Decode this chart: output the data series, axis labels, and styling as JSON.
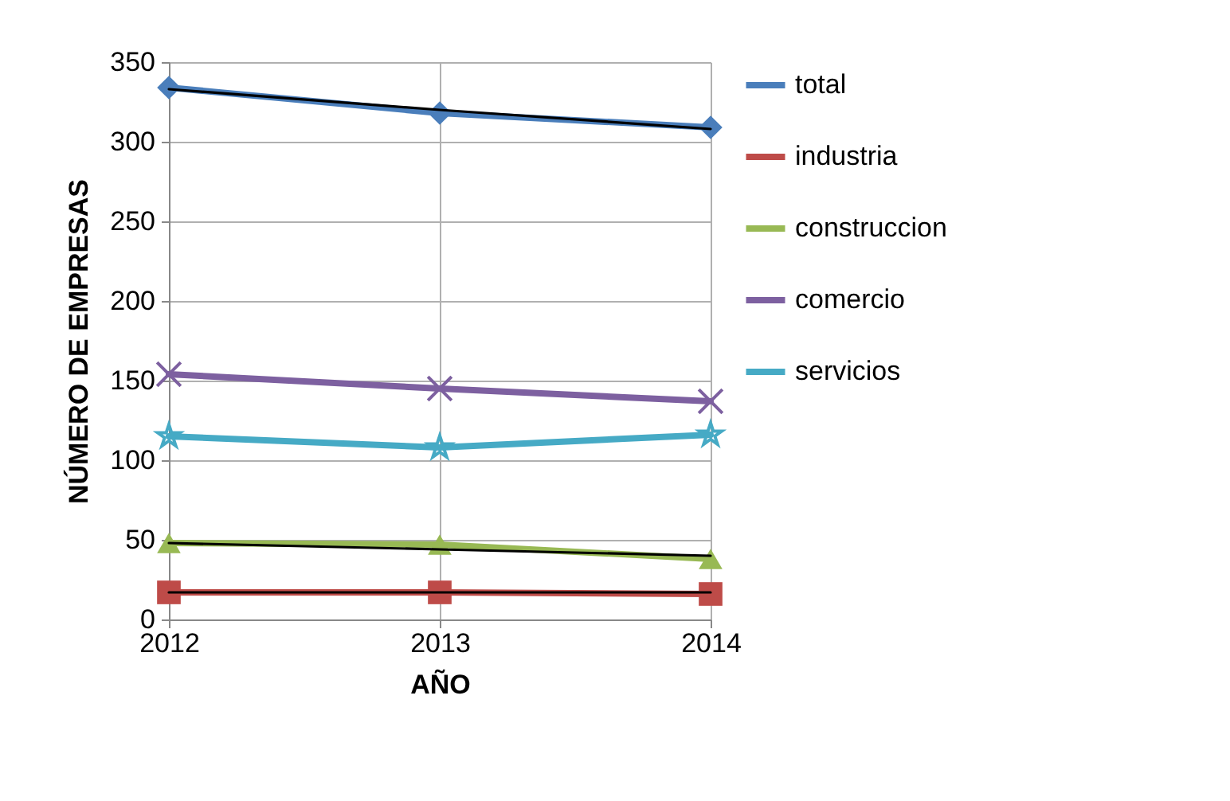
{
  "chart_data": {
    "type": "line",
    "xlabel": "AÑO",
    "ylabel": "NÚMERO DE EMPRESAS",
    "categories": [
      "2012",
      "2013",
      "2014"
    ],
    "ylim": [
      0,
      350
    ],
    "yticks": [
      0,
      50,
      100,
      150,
      200,
      250,
      300,
      350
    ],
    "grid": true,
    "legend": "right",
    "series": [
      {
        "name": "total",
        "color": "#4a7ebb",
        "marker": "diamond",
        "values": [
          334,
          318,
          309
        ]
      },
      {
        "name": "industria",
        "color": "#be4b48",
        "marker": "square",
        "values": [
          17,
          17,
          16
        ]
      },
      {
        "name": "construccion",
        "color": "#98b954",
        "marker": "triangle",
        "values": [
          48,
          47,
          38
        ]
      },
      {
        "name": "comercio",
        "color": "#7d60a0",
        "marker": "cross",
        "values": [
          154,
          145,
          137
        ]
      },
      {
        "name": "servicios",
        "color": "#46aac5",
        "marker": "star",
        "values": [
          115,
          108,
          116
        ]
      },
      {
        "color": "#000000",
        "marker": "none",
        "values": [
          333,
          320,
          308
        ]
      },
      {
        "color": "#000000",
        "marker": "none",
        "values": [
          17,
          17,
          17
        ]
      },
      {
        "color": "#000000",
        "marker": "none",
        "values": [
          48,
          44,
          40
        ]
      }
    ]
  }
}
